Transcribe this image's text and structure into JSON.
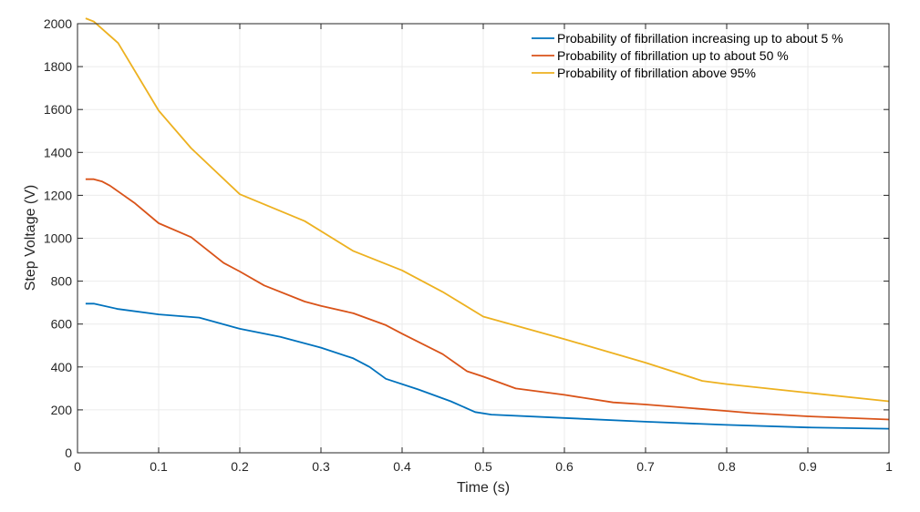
{
  "chart_data": {
    "type": "line",
    "title": "",
    "xlabel": "Time (s)",
    "ylabel": "Step Voltage (V)",
    "xlim": [
      0,
      1
    ],
    "ylim": [
      0,
      2000
    ],
    "xticks": [
      "0",
      "0.1",
      "0.2",
      "0.3",
      "0.4",
      "0.5",
      "0.6",
      "0.7",
      "0.8",
      "0.9",
      "1"
    ],
    "yticks": [
      "0",
      "200",
      "400",
      "600",
      "800",
      "1000",
      "1200",
      "1400",
      "1600",
      "1800",
      "2000"
    ],
    "grid": true,
    "legend_placement": "top-right",
    "series": [
      {
        "name": "Probability of fibrillation increasing up to about 5 %",
        "color": "#0072BD",
        "x": [
          0.01,
          0.02,
          0.05,
          0.1,
          0.15,
          0.2,
          0.25,
          0.3,
          0.34,
          0.36,
          0.38,
          0.42,
          0.46,
          0.49,
          0.51,
          0.6,
          0.7,
          0.8,
          0.9,
          1.0
        ],
        "y": [
          695,
          695,
          670,
          645,
          630,
          578,
          540,
          490,
          440,
          400,
          345,
          295,
          240,
          190,
          178,
          162,
          145,
          130,
          118,
          112
        ]
      },
      {
        "name": "Probability of fibrillation up to about 50 %",
        "color": "#D95319",
        "x": [
          0.01,
          0.02,
          0.03,
          0.04,
          0.07,
          0.1,
          0.14,
          0.18,
          0.2,
          0.23,
          0.28,
          0.3,
          0.34,
          0.38,
          0.4,
          0.45,
          0.48,
          0.5,
          0.54,
          0.6,
          0.66,
          0.7,
          0.8,
          0.83,
          0.9,
          1.0
        ],
        "y": [
          1275,
          1275,
          1265,
          1245,
          1165,
          1070,
          1005,
          885,
          845,
          780,
          705,
          685,
          650,
          595,
          555,
          460,
          380,
          355,
          300,
          270,
          235,
          225,
          195,
          185,
          170,
          155
        ]
      },
      {
        "name": "Probability of fibrillation above 95%",
        "color": "#EDB120",
        "x": [
          0.01,
          0.02,
          0.05,
          0.1,
          0.14,
          0.2,
          0.28,
          0.34,
          0.4,
          0.45,
          0.5,
          0.6,
          0.7,
          0.77,
          0.8,
          0.9,
          1.0
        ],
        "y": [
          2025,
          2010,
          1910,
          1595,
          1420,
          1205,
          1080,
          940,
          850,
          750,
          635,
          530,
          420,
          335,
          320,
          280,
          240
        ]
      }
    ]
  }
}
